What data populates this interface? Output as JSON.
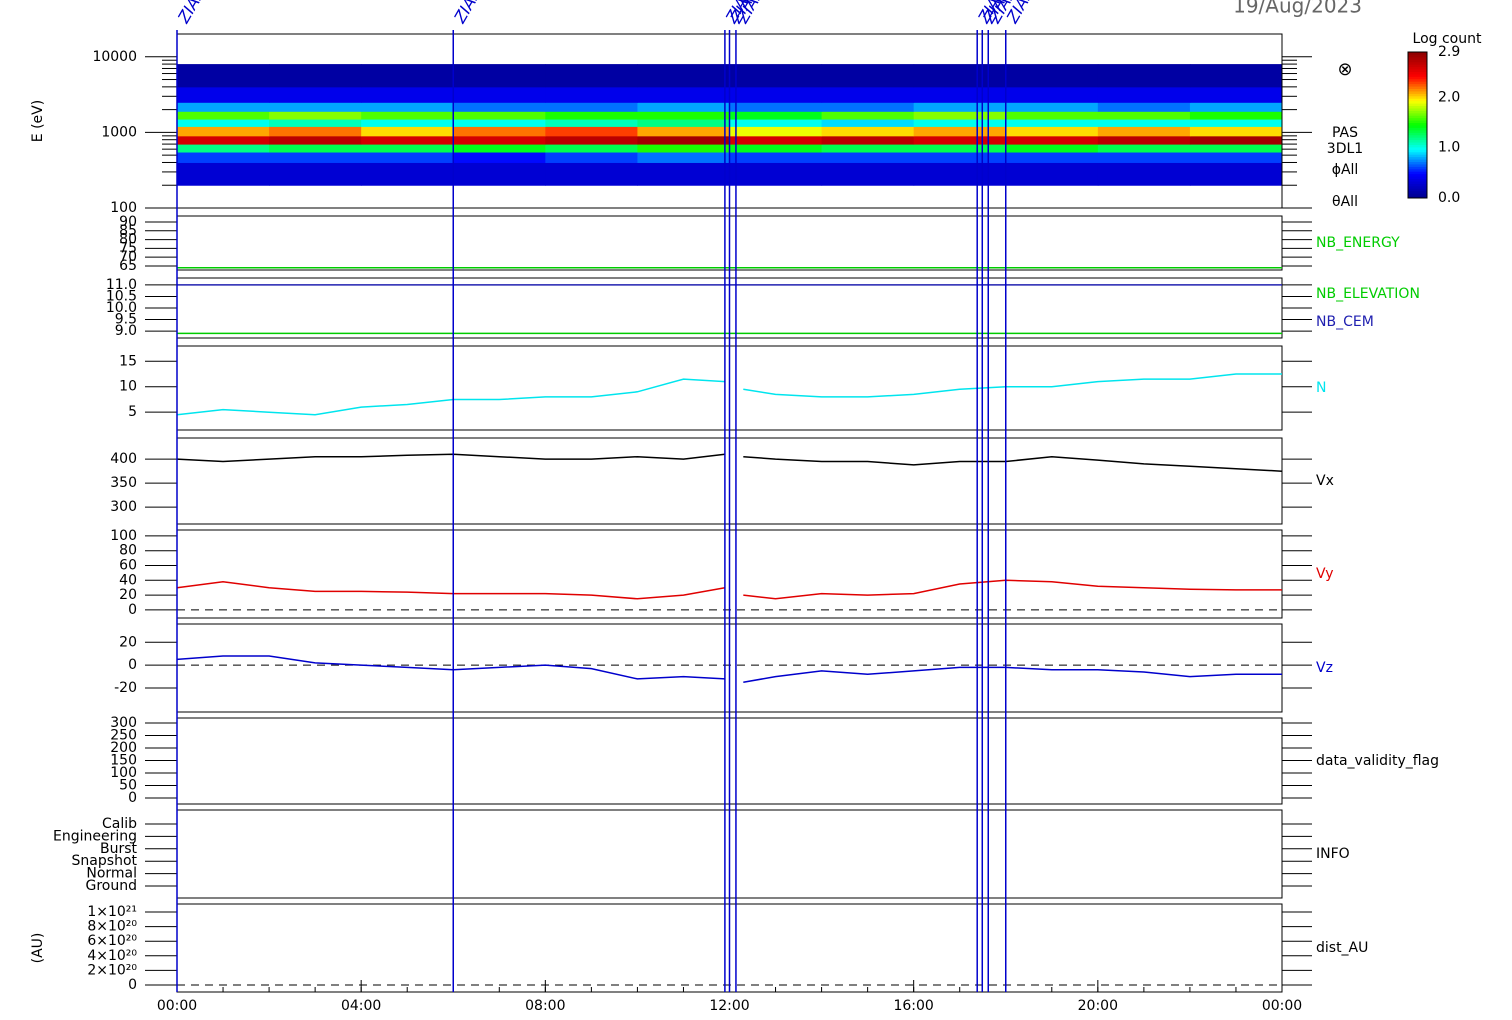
{
  "time_markers": [
    {
      "x": 0,
      "label": "ZIAS"
    },
    {
      "x": 6,
      "label": "ZIAS"
    },
    {
      "x": 11.9,
      "label": "ZIAS"
    },
    {
      "x": 12.0,
      "label": "ZIAS"
    },
    {
      "x": 12.14,
      "label": "ZIAS"
    },
    {
      "x": 17.38,
      "label": "ZIAS"
    },
    {
      "x": 17.49,
      "label": "ZIAS"
    },
    {
      "x": 17.62,
      "label": "ZIAS"
    },
    {
      "x": 18.0,
      "label": "ZIAS"
    }
  ],
  "chart_data": [
    {
      "type": "heatmap",
      "title": "19/Aug/2023",
      "ylabel": "E (eV)",
      "log_y": true,
      "ylim": [
        100,
        20000
      ],
      "yticks": [
        100,
        1000,
        10000
      ],
      "x_bins": [
        0,
        2,
        4,
        6,
        8,
        10,
        12,
        14,
        16,
        18,
        20,
        22,
        24
      ],
      "y_bins": [
        200,
        400,
        550,
        700,
        900,
        1200,
        1500,
        1900,
        2500,
        4000,
        8000
      ],
      "values": [
        [
          0.3,
          0.3,
          0.3,
          0.3,
          0.3,
          0.3,
          0.3,
          0.3,
          0.3,
          0.3,
          0.3,
          0.3
        ],
        [
          0.6,
          0.6,
          0.6,
          0.5,
          0.6,
          0.7,
          0.6,
          0.6,
          0.6,
          0.6,
          0.6,
          0.6
        ],
        [
          1.2,
          1.3,
          1.3,
          1.4,
          1.3,
          1.5,
          1.4,
          1.3,
          1.3,
          1.4,
          1.3,
          1.3
        ],
        [
          2.6,
          2.7,
          2.6,
          2.6,
          2.7,
          2.8,
          2.6,
          2.7,
          2.6,
          2.6,
          2.7,
          2.8
        ],
        [
          2.1,
          2.2,
          2.0,
          2.2,
          2.3,
          2.1,
          1.9,
          2.0,
          2.1,
          2.0,
          2.1,
          2.0
        ],
        [
          1.0,
          1.1,
          1.0,
          1.0,
          1.1,
          1.2,
          1.0,
          0.9,
          1.0,
          1.0,
          1.0,
          1.0
        ],
        [
          1.6,
          1.7,
          1.6,
          1.6,
          1.5,
          1.5,
          1.4,
          1.6,
          1.7,
          1.6,
          1.6,
          1.5
        ],
        [
          0.8,
          0.8,
          0.8,
          0.7,
          0.7,
          0.8,
          0.7,
          0.7,
          0.8,
          0.8,
          0.7,
          0.8
        ],
        [
          0.4,
          0.4,
          0.4,
          0.4,
          0.4,
          0.4,
          0.4,
          0.4,
          0.4,
          0.4,
          0.4,
          0.4
        ],
        [
          0.1,
          0.1,
          0.1,
          0.1,
          0.1,
          0.1,
          0.1,
          0.1,
          0.1,
          0.1,
          0.1,
          0.1
        ]
      ],
      "zlabel": "Log count",
      "zlim": [
        0,
        2.9
      ],
      "zticks": [
        {
          "value": 0,
          "label": "0.0"
        },
        {
          "value": 1,
          "label": "1.0"
        },
        {
          "value": 2,
          "label": "2.0"
        },
        {
          "value": 2.9,
          "label": "2.9"
        }
      ],
      "colormap": [
        "#00008b",
        "#0000ff",
        "#00ffff",
        "#00ff00",
        "#ffff00",
        "#ff0000",
        "#8b0000"
      ],
      "annotations": [
        "⊗",
        "PAS",
        "3DL1",
        "ϕAll",
        "θAll"
      ]
    },
    {
      "type": "line",
      "x": [
        0,
        24
      ],
      "ylim": [
        62.7,
        93.4
      ],
      "yticks": [
        65,
        70,
        75,
        80,
        85,
        90
      ],
      "series": [
        {
          "name": "NB_ENERGY",
          "color": "#00cc00",
          "values": [
            64,
            64
          ]
        }
      ]
    },
    {
      "type": "line",
      "x": [
        0,
        24
      ],
      "ylim": [
        8.7,
        11.3
      ],
      "yticks": [
        {
          "value": 9,
          "label": "9.0"
        },
        {
          "value": 9.5,
          "label": "9.5"
        },
        {
          "value": 10,
          "label": "10.0"
        },
        {
          "value": 10.5,
          "label": "10.5"
        },
        {
          "value": 11,
          "label": "11.0"
        }
      ],
      "series": [
        {
          "name": "NB_ELEVATION",
          "color": "#00cc00",
          "values": [
            8.9,
            8.9
          ]
        },
        {
          "name": "NB_CEM",
          "color": "#2020b0",
          "values": [
            11,
            11
          ]
        }
      ]
    },
    {
      "type": "line",
      "x": [
        0,
        1,
        2,
        3,
        4,
        5,
        6,
        7,
        8,
        9,
        10,
        11,
        11.9,
        12.1,
        12.3,
        13,
        14,
        15,
        16,
        17,
        18,
        19,
        20,
        21,
        22,
        23,
        24
      ],
      "ylim": [
        1.5,
        18
      ],
      "yticks": [
        5,
        10,
        15
      ],
      "series": [
        {
          "name": "N",
          "color": "#00e5ee",
          "values": [
            4.5,
            5.5,
            5,
            4.5,
            6,
            6.5,
            7.5,
            7.5,
            8,
            8,
            9,
            11.5,
            11,
            null,
            9.5,
            8.5,
            8,
            8,
            8.5,
            9.5,
            10,
            10,
            11,
            11.5,
            11.5,
            12.5,
            12.5
          ]
        }
      ]
    },
    {
      "type": "line",
      "x": [
        0,
        1,
        2,
        3,
        4,
        5,
        6,
        7,
        8,
        9,
        10,
        11,
        11.9,
        12.1,
        12.3,
        13,
        14,
        15,
        16,
        17,
        18,
        19,
        20,
        21,
        22,
        23,
        24
      ],
      "ylim": [
        265,
        444
      ],
      "yticks": [
        300,
        350,
        400
      ],
      "series": [
        {
          "name": "Vx",
          "color": "#000000",
          "values": [
            400,
            395,
            400,
            405,
            405,
            408,
            410,
            405,
            400,
            400,
            405,
            400,
            410,
            null,
            405,
            400,
            395,
            395,
            388,
            395,
            395,
            405,
            398,
            390,
            385,
            380,
            375
          ]
        }
      ]
    },
    {
      "type": "line",
      "x": [
        0,
        1,
        2,
        3,
        4,
        5,
        6,
        7,
        8,
        9,
        10,
        11,
        11.9,
        12.1,
        12.3,
        13,
        14,
        15,
        16,
        17,
        18,
        19,
        20,
        21,
        22,
        23,
        24
      ],
      "ylim": [
        -11,
        108
      ],
      "yticks": [
        0,
        20,
        40,
        60,
        80,
        100
      ],
      "zero_line": true,
      "series": [
        {
          "name": "Vy",
          "color": "#e00000",
          "values": [
            30,
            38,
            30,
            25,
            25,
            24,
            22,
            22,
            22,
            20,
            15,
            20,
            30,
            null,
            20,
            15,
            22,
            20,
            22,
            35,
            40,
            38,
            32,
            30,
            28,
            27,
            27
          ]
        }
      ]
    },
    {
      "type": "line",
      "x": [
        0,
        1,
        2,
        3,
        4,
        5,
        6,
        7,
        8,
        9,
        10,
        11,
        11.9,
        12.1,
        12.3,
        13,
        14,
        15,
        16,
        17,
        18,
        19,
        20,
        21,
        22,
        23,
        24
      ],
      "ylim": [
        -41,
        36
      ],
      "yticks": [
        -20,
        0,
        20
      ],
      "zero_line": true,
      "series": [
        {
          "name": "Vz",
          "color": "#0000cc",
          "values": [
            5,
            8,
            8,
            2,
            0,
            -2,
            -4,
            -2,
            0,
            -3,
            -12,
            -10,
            -12,
            null,
            -15,
            -10,
            -5,
            -8,
            -5,
            -2,
            -2,
            -4,
            -4,
            -6,
            -10,
            -8,
            -8
          ]
        }
      ]
    },
    {
      "type": "empty",
      "ylim": [
        -24,
        320
      ],
      "yticks": [
        0,
        50,
        100,
        150,
        200,
        250,
        300
      ],
      "label": "data_validity_flag"
    },
    {
      "type": "empty",
      "ycategories": [
        "Ground",
        "Normal",
        "Snapshot",
        "Burst",
        "Engineering",
        "Calib"
      ],
      "label": "INFO"
    },
    {
      "type": "empty",
      "ylabel": "(AU)",
      "ylim": [
        -96000000000000000000,
        1110000000000000000000
      ],
      "zero_line": true,
      "yticks": [
        0,
        {
          "value": 200000000000000000000,
          "label": "2×10²⁰"
        },
        {
          "value": 400000000000000000000,
          "label": "4×10²⁰"
        },
        {
          "value": 600000000000000000000,
          "label": "6×10²⁰"
        },
        {
          "value": 800000000000000000000,
          "label": "8×10²⁰"
        },
        {
          "value": 1000000000000000000000,
          "label": "1×10²¹"
        }
      ],
      "label": "dist_AU",
      "xlim": [
        0,
        24
      ],
      "xticks": [
        {
          "value": 0,
          "label": "00:00"
        },
        {
          "value": 4,
          "label": "04:00"
        },
        {
          "value": 8,
          "label": "08:00"
        },
        {
          "value": 12,
          "label": "12:00"
        },
        {
          "value": 16,
          "label": "16:00"
        },
        {
          "value": 20,
          "label": "20:00"
        },
        {
          "value": 24,
          "label": "00:00"
        }
      ]
    }
  ]
}
